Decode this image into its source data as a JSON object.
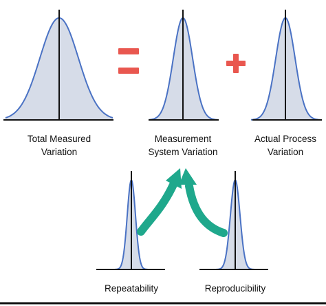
{
  "labels": {
    "total_line1": "Total Measured",
    "total_line2": "Variation",
    "measurement_line1": "Measurement",
    "measurement_line2": "System Variation",
    "actual_line1": "Actual Process",
    "actual_line2": "Variation",
    "repeatability": "Repeatability",
    "reproducibility": "Reproducibility"
  },
  "operators": {
    "equals": "=",
    "plus": "+"
  },
  "colors": {
    "curve_stroke": "#4a72c4",
    "curve_fill": "#d6dce8",
    "axis": "#111111",
    "operator": "#e9574f",
    "arrow": "#1fa88c"
  }
}
